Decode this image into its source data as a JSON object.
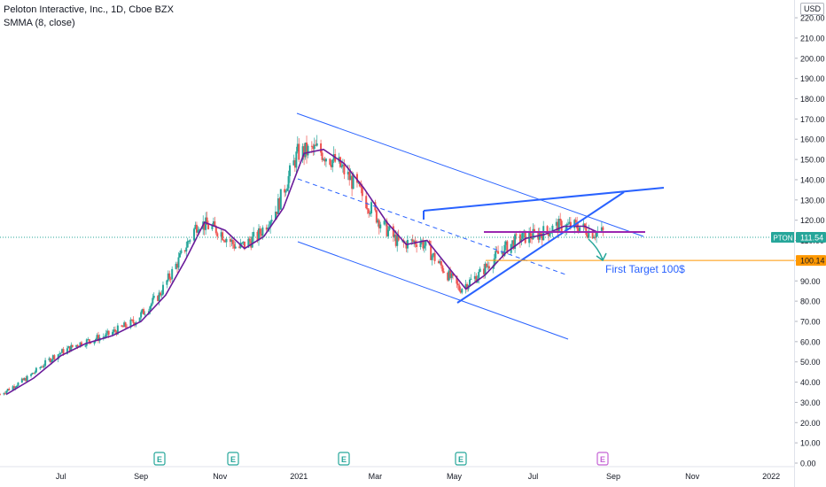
{
  "header": {
    "title": "Peloton Interactive, Inc., 1D, Cboe BZX",
    "indicator": "SMMA (8, close)",
    "currency": "USD"
  },
  "price_scale": {
    "labels": [
      "220.00",
      "210.00",
      "200.00",
      "190.00",
      "180.00",
      "170.00",
      "160.00",
      "150.00",
      "140.00",
      "130.00",
      "120.00",
      "110.00",
      "100.00",
      "90.00",
      "80.00",
      "70.00",
      "60.00",
      "50.00",
      "40.00",
      "30.00",
      "20.00",
      "10.00",
      "0.00"
    ],
    "ticker_tag": {
      "symbol": "PTON",
      "value": "111.54",
      "color": "#26a69a"
    },
    "target_tag": {
      "value": "100.14",
      "color": "#ff9800"
    }
  },
  "time_axis": {
    "labels": [
      "Jul",
      "Sep",
      "Nov",
      "2021",
      "Mar",
      "May",
      "Jul",
      "Sep",
      "Nov",
      "2022"
    ]
  },
  "annotation": {
    "text": "First Target 100$",
    "color": "#2962ff"
  },
  "earnings_markers": [
    "E",
    "E",
    "E",
    "E",
    "E"
  ],
  "chart_data": {
    "type": "line",
    "title": "Peloton Interactive, Inc., 1D, Cboe BZX",
    "series": [
      {
        "name": "SMMA (8, close)",
        "color": "#6a1b9a",
        "x": [
          "2020-05-20",
          "2020-06-10",
          "2020-07-01",
          "2020-07-20",
          "2020-08-10",
          "2020-09-01",
          "2020-09-20",
          "2020-10-05",
          "2020-10-20",
          "2020-11-05",
          "2020-11-20",
          "2020-12-05",
          "2020-12-20",
          "2021-01-05",
          "2021-01-20",
          "2021-02-05",
          "2021-02-20",
          "2021-03-10",
          "2021-03-25",
          "2021-04-10",
          "2021-04-25",
          "2021-05-10",
          "2021-05-25",
          "2021-06-10",
          "2021-06-25",
          "2021-07-10",
          "2021-07-25",
          "2021-08-10",
          "2021-08-20"
        ],
        "y": [
          34,
          42,
          53,
          59,
          63,
          70,
          83,
          100,
          119,
          115,
          106,
          112,
          126,
          153,
          155,
          148,
          136,
          119,
          108,
          110,
          98,
          86,
          93,
          104,
          111,
          113,
          117,
          117,
          114
        ]
      }
    ],
    "close_price": 111.54,
    "target_level": 100.14,
    "ylim": [
      0,
      220
    ],
    "xlim": [
      "2020-05-15",
      "2022-02-10"
    ],
    "grid": false,
    "legend": "top-left"
  },
  "colors": {
    "up_candle": "#26a69a",
    "down_candle": "#ef5350",
    "trendline": "#2962ff",
    "smma": "#6a1b9a",
    "resistance": "#9c27b0",
    "projection_arrow": "#26a69a"
  }
}
